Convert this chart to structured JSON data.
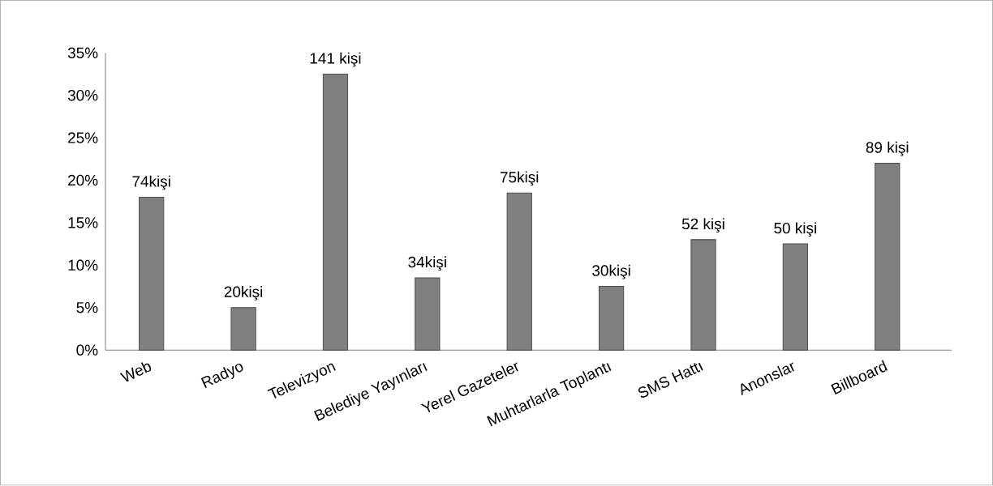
{
  "chart_data": {
    "type": "bar",
    "categories": [
      "Web",
      "Radyo",
      "Televizyon",
      "Belediye Yayınları",
      "Yerel Gazeteler",
      "Muhtarlarla Toplantı",
      "SMS Hattı",
      "Anonslar",
      "Billboard"
    ],
    "values": [
      18,
      5,
      32.5,
      8.5,
      18.5,
      7.5,
      13,
      12.5,
      22
    ],
    "annotations": [
      {
        "text": "74kişi",
        "x": "Web",
        "y": 18
      },
      {
        "text": "20kişi",
        "x": "Radyo",
        "y": 5
      },
      {
        "text": "141 kişi",
        "x": "Televizyon",
        "y": 32.5
      },
      {
        "text": "34kişi",
        "x": "Belediye Yayınları",
        "y": 8.5
      },
      {
        "text": "75kişi",
        "x": "Yerel Gazeteler",
        "y": 18.5
      },
      {
        "text": "30kişi",
        "x": "Muhtarlarla Toplantı",
        "y": 7.5
      },
      {
        "text": "52 kişi",
        "x": "SMS Hattı",
        "y": 13
      },
      {
        "text": "50 kişi",
        "x": "Anonslar",
        "y": 12.5
      },
      {
        "text": "89 kişi",
        "x": "Billboard",
        "y": 22
      }
    ],
    "color": "#808080",
    "ylim": [
      0,
      35
    ],
    "yticks": [
      {
        "value": 0,
        "label": "0%"
      },
      {
        "value": 5,
        "label": "5%"
      },
      {
        "value": 10,
        "label": "10%"
      },
      {
        "value": 15,
        "label": "15%"
      },
      {
        "value": 20,
        "label": "20%"
      },
      {
        "value": 25,
        "label": "25%"
      },
      {
        "value": 30,
        "label": "30%"
      },
      {
        "value": 35,
        "label": "35%"
      }
    ],
    "grid": false
  }
}
